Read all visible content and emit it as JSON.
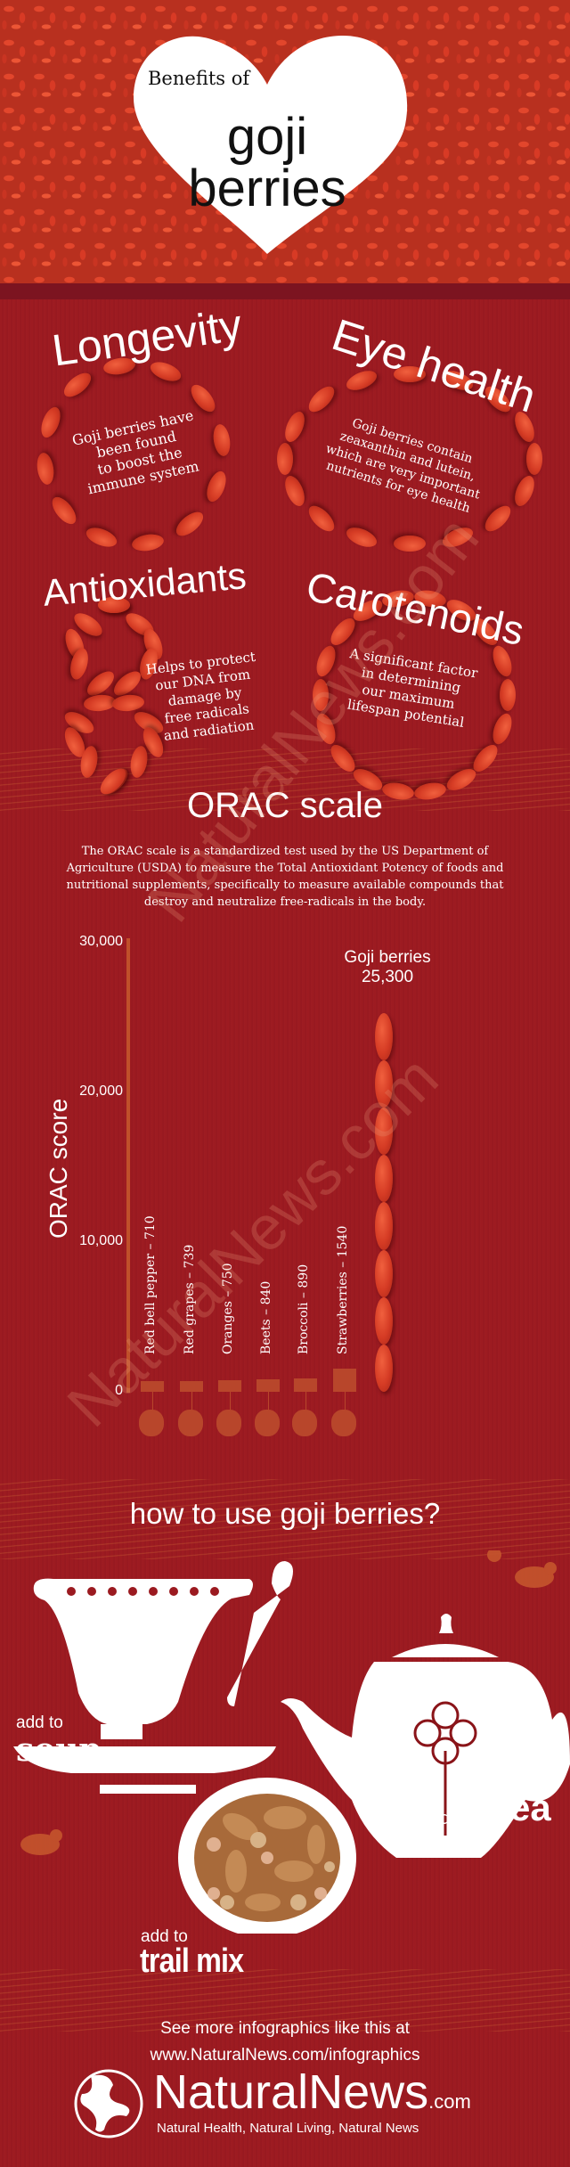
{
  "header": {
    "pre_title": "Benefits of",
    "title_line1": "goji",
    "title_line2": "berries"
  },
  "benefits": [
    {
      "title": "Longevity",
      "text_lines": [
        "Goji berries have",
        "been found",
        "to boost the",
        "immune system"
      ]
    },
    {
      "title": "Eye health",
      "text_lines": [
        "Goji berries contain",
        "zeaxanthin and lutein,",
        "which are very important",
        "nutrients for eye health"
      ]
    },
    {
      "title": "Antioxidants",
      "text_lines": [
        "Helps to protect",
        "our DNA from",
        "damage by",
        "free radicals",
        "and radiation"
      ]
    },
    {
      "title": "Carotenoids",
      "text_lines": [
        "A significant factor",
        "in determining",
        "our maximum",
        "lifespan potential"
      ]
    }
  ],
  "orac": {
    "title": "ORAC scale",
    "description": "The ORAC scale is a standardized test used by the US Department of Agriculture (USDA) to measure the Total Antioxidant Potency of foods and nutritional supplements, specifically to measure available compounds that destroy and neutralize free-radicals in the body."
  },
  "chart_data": {
    "type": "bar",
    "title": "ORAC scale",
    "ylabel": "ORAC score",
    "ylim": [
      0,
      30000
    ],
    "yticks": [
      "30,000",
      "20,000",
      "10,000",
      "0"
    ],
    "ytick_values": [
      30000,
      20000,
      10000,
      0
    ],
    "categories": [
      "Red bell pepper",
      "Red grapes",
      "Oranges",
      "Beets",
      "Broccoli",
      "Strawberries",
      "Goji berries"
    ],
    "values": [
      710,
      739,
      750,
      840,
      890,
      1540,
      25300
    ],
    "labels": [
      "Red bell pepper – 710",
      "Red grapes – 739",
      "Oranges – 750",
      "Beets – 840",
      "Broccoli – 890",
      "Strawberries – 1540"
    ],
    "highlight": {
      "name": "Goji berries",
      "value_label": "25,300"
    },
    "bar_color": "#b8462b"
  },
  "usage": {
    "title": "how to use goji berries?",
    "soup": {
      "pre": "add to",
      "main": "soup"
    },
    "tea": {
      "pre": "add to",
      "main": "tea"
    },
    "trail": {
      "pre": "add to",
      "main": "trail mix"
    }
  },
  "footer": {
    "line1": "See more infographics like this at",
    "line2": "www.NaturalNews.com/infographics",
    "brand": "NaturalNews",
    "brand_suffix": ".com",
    "tagline": "Natural Health, Natural Living, Natural News"
  },
  "watermark": "NaturalNews.com"
}
